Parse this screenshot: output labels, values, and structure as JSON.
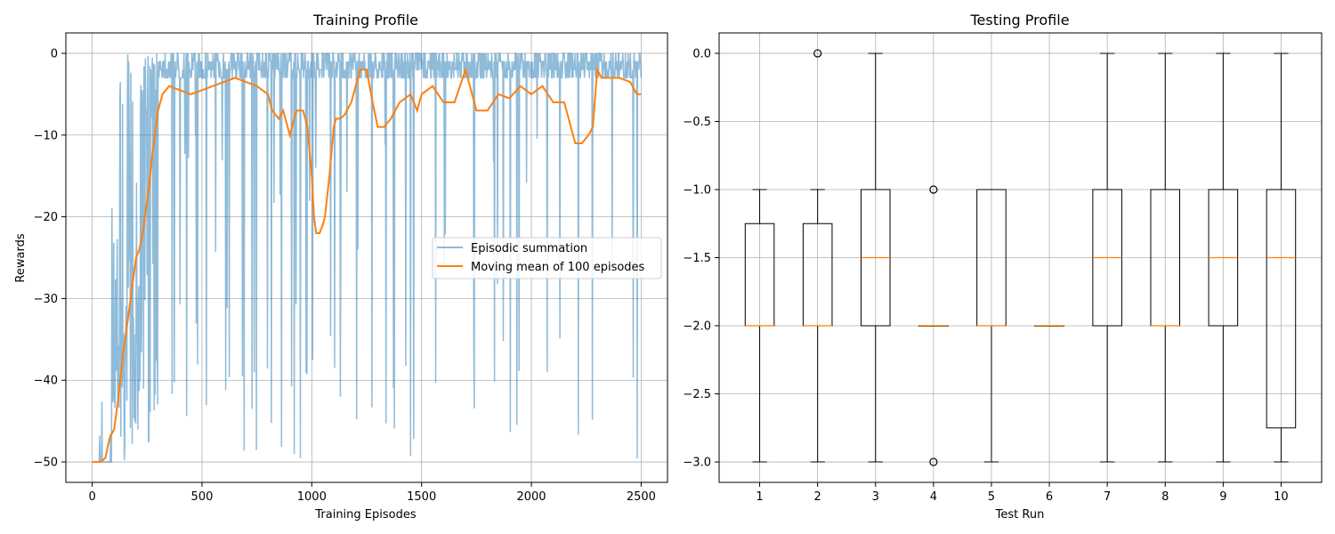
{
  "colors": {
    "episodic": "#1f77b4",
    "moving_mean": "#ff7f0e",
    "grid": "#b0b0b0",
    "box": "#000000",
    "median": "#ff7f0e"
  },
  "chart_data": [
    {
      "type": "line",
      "title": "Training Profile",
      "xlabel": "Training Episodes",
      "ylabel": "Rewards",
      "xlim": [
        -120,
        2620
      ],
      "ylim": [
        -52.5,
        2.5
      ],
      "xticks": [
        0,
        500,
        1000,
        1500,
        2000,
        2500
      ],
      "yticks": [
        0,
        -10,
        -20,
        -30,
        -40,
        -50
      ],
      "grid": true,
      "legend": {
        "position": "center-right",
        "entries": [
          "Episodic summation",
          "Moving mean of 100 episodes"
        ]
      },
      "series": [
        {
          "name": "Episodic summation",
          "description": "Noisy per-episode reward between -50 and 0",
          "n_episodes": 2500,
          "min": -50,
          "max": 0
        },
        {
          "name": "Moving mean of 100 episodes",
          "x": [
            0,
            40,
            60,
            80,
            100,
            120,
            140,
            160,
            180,
            200,
            215,
            230,
            245,
            260,
            275,
            290,
            300,
            320,
            350,
            400,
            450,
            500,
            550,
            600,
            650,
            700,
            750,
            800,
            820,
            850,
            870,
            900,
            930,
            960,
            980,
            1000,
            1010,
            1020,
            1035,
            1050,
            1060,
            1080,
            1100,
            1110,
            1130,
            1150,
            1180,
            1200,
            1220,
            1250,
            1270,
            1300,
            1330,
            1360,
            1400,
            1450,
            1480,
            1500,
            1550,
            1600,
            1650,
            1700,
            1750,
            1800,
            1850,
            1900,
            1950,
            2000,
            2050,
            2100,
            2150,
            2200,
            2230,
            2260,
            2280,
            2300,
            2320,
            2350,
            2400,
            2450,
            2480,
            2500
          ],
          "values": [
            -50,
            -50,
            -49.5,
            -47,
            -46,
            -42,
            -37,
            -33,
            -29,
            -25,
            -24,
            -22,
            -19,
            -16,
            -12,
            -9,
            -7,
            -5,
            -4,
            -4.5,
            -5,
            -4.5,
            -4,
            -3.5,
            -3,
            -3.5,
            -4,
            -5,
            -7,
            -8,
            -7,
            -10,
            -7,
            -7,
            -9,
            -15,
            -20,
            -22,
            -22,
            -21,
            -20,
            -15,
            -9,
            -8,
            -8,
            -7.5,
            -6,
            -4,
            -2,
            -2,
            -5,
            -9,
            -9,
            -8,
            -6,
            -5,
            -7,
            -5,
            -4,
            -6,
            -6,
            -2,
            -7,
            -7,
            -5,
            -5.5,
            -4,
            -5,
            -4,
            -6,
            -6,
            -11,
            -11,
            -10,
            -9,
            -2,
            -3,
            -3,
            -3,
            -3.5,
            -5,
            -5
          ]
        }
      ]
    },
    {
      "type": "box",
      "title": "Testing Profile",
      "xlabel": "Test Run",
      "ylabel": "",
      "categories": [
        "1",
        "2",
        "3",
        "4",
        "5",
        "6",
        "7",
        "8",
        "9",
        "10"
      ],
      "ylim": [
        -3.15,
        0.15
      ],
      "yticks": [
        0.0,
        -0.5,
        -1.0,
        -1.5,
        -2.0,
        -2.5,
        -3.0
      ],
      "ytick_labels": [
        "0.0",
        "−0.5",
        "−1.0",
        "−1.5",
        "−2.0",
        "−2.5",
        "−3.0"
      ],
      "grid": true,
      "boxes": [
        {
          "label": "1",
          "whisker_low": -3,
          "q1": -2,
          "median": -2,
          "q3": -1.25,
          "whisker_high": -1,
          "fliers": []
        },
        {
          "label": "2",
          "whisker_low": -3,
          "q1": -2,
          "median": -2,
          "q3": -1.25,
          "whisker_high": -1,
          "fliers": [
            0
          ]
        },
        {
          "label": "3",
          "whisker_low": -3,
          "q1": -2,
          "median": -1.5,
          "q3": -1,
          "whisker_high": 0,
          "fliers": []
        },
        {
          "label": "4",
          "whisker_low": -2,
          "q1": -2,
          "median": -2,
          "q3": -2,
          "whisker_high": -2,
          "fliers": [
            -1,
            -3
          ]
        },
        {
          "label": "5",
          "whisker_low": -3,
          "q1": -2,
          "median": -2,
          "q3": -1,
          "whisker_high": -1,
          "fliers": []
        },
        {
          "label": "6",
          "whisker_low": -2,
          "q1": -2,
          "median": -2,
          "q3": -2,
          "whisker_high": -2,
          "fliers": []
        },
        {
          "label": "7",
          "whisker_low": -3,
          "q1": -2,
          "median": -1.5,
          "q3": -1,
          "whisker_high": 0,
          "fliers": []
        },
        {
          "label": "8",
          "whisker_low": -3,
          "q1": -2,
          "median": -2,
          "q3": -1,
          "whisker_high": 0,
          "fliers": []
        },
        {
          "label": "9",
          "whisker_low": -3,
          "q1": -2,
          "median": -1.5,
          "q3": -1,
          "whisker_high": 0,
          "fliers": []
        },
        {
          "label": "10",
          "whisker_low": -3,
          "q1": -2.75,
          "median": -1.5,
          "q3": -1,
          "whisker_high": 0,
          "fliers": []
        }
      ]
    }
  ]
}
